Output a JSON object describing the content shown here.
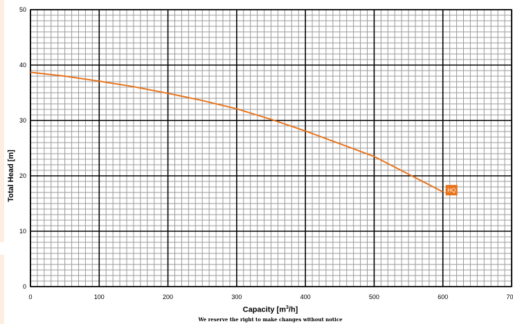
{
  "chart_data": {
    "type": "line",
    "xlabel_main": "Capacity [m",
    "xlabel_sup": "3",
    "xlabel_tail": "/h]",
    "ylabel": "Total Head [m]",
    "xlim": [
      0,
      700
    ],
    "ylim": [
      0,
      50
    ],
    "x_ticks": [
      "0",
      "100",
      "200",
      "300",
      "400",
      "500",
      "600",
      "700"
    ],
    "y_ticks": [
      "0",
      "10",
      "20",
      "30",
      "40",
      "50"
    ],
    "grid": true,
    "series": [
      {
        "name": "HQ",
        "color": "#e8731a",
        "x": [
          0,
          50,
          100,
          150,
          200,
          250,
          300,
          350,
          400,
          450,
          500,
          550,
          600
        ],
        "y": [
          38.7,
          38.0,
          37.1,
          36.1,
          34.9,
          33.6,
          32.1,
          30.2,
          28.1,
          25.8,
          23.5,
          20.3,
          17.1
        ]
      }
    ],
    "footnote": "We reserve the right to make changes without notice"
  }
}
